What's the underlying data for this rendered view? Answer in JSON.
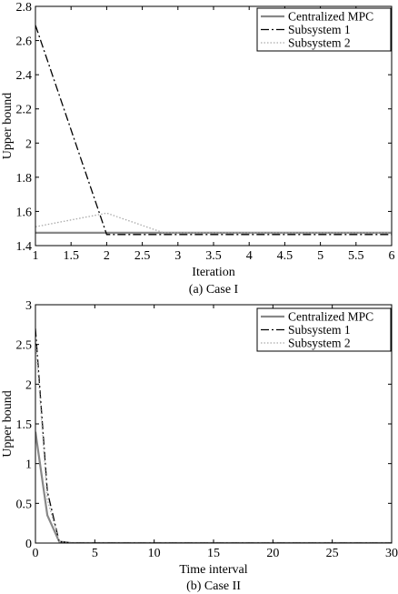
{
  "chart_data": [
    {
      "type": "line",
      "caption": "(a) Case I",
      "xlabel": "Iteration",
      "ylabel": "Upper bound",
      "xlim": [
        1,
        6
      ],
      "ylim": [
        1.4,
        2.8
      ],
      "xticks": [
        1,
        1.5,
        2,
        2.5,
        3,
        3.5,
        4,
        4.5,
        5,
        5.5,
        6
      ],
      "xtick_labels": [
        "1",
        "1.5",
        "2",
        "2.5",
        "3",
        "3.5",
        "4",
        "4.5",
        "5",
        "5.5",
        "6"
      ],
      "yticks": [
        1.4,
        1.6,
        1.8,
        2,
        2.2,
        2.4,
        2.6,
        2.8
      ],
      "ytick_labels": [
        "1.4",
        "1.6",
        "1.8",
        "2",
        "2.2",
        "2.4",
        "2.6",
        "2.8"
      ],
      "grid": false,
      "legend_position": "top-right",
      "series": [
        {
          "name": "Centralized MPC",
          "color": "#888888",
          "style": "solid",
          "x": [
            1,
            2,
            3,
            4,
            5,
            6
          ],
          "y": [
            1.475,
            1.475,
            1.475,
            1.475,
            1.475,
            1.475
          ]
        },
        {
          "name": "Subsystem 1",
          "color": "#000000",
          "style": "dashdot",
          "x": [
            1,
            2,
            3,
            4,
            5,
            6
          ],
          "y": [
            2.69,
            1.465,
            1.465,
            1.465,
            1.465,
            1.465
          ]
        },
        {
          "name": "Subsystem 2",
          "color": "#aaaaaa",
          "style": "dotted",
          "x": [
            1,
            2,
            2.8,
            3,
            4,
            5,
            6
          ],
          "y": [
            1.51,
            1.59,
            1.475,
            1.475,
            1.475,
            1.475,
            1.475
          ]
        }
      ]
    },
    {
      "type": "line",
      "caption": "(b) Case II",
      "xlabel": "Time interval",
      "ylabel": "Upper bound",
      "xlim": [
        0,
        30
      ],
      "ylim": [
        0,
        3
      ],
      "xticks": [
        0,
        5,
        10,
        15,
        20,
        25,
        30
      ],
      "xtick_labels": [
        "0",
        "5",
        "10",
        "15",
        "20",
        "25",
        "30"
      ],
      "yticks": [
        0,
        0.5,
        1,
        1.5,
        2,
        2.5,
        3
      ],
      "ytick_labels": [
        "0",
        "0.5",
        "1",
        "1.5",
        "2",
        "2.5",
        "3"
      ],
      "grid": false,
      "legend_position": "top-right",
      "series": [
        {
          "name": "Centralized MPC",
          "color": "#888888",
          "style": "solid",
          "x": [
            0,
            1,
            2,
            3,
            30
          ],
          "y": [
            1.4,
            0.35,
            0.02,
            0,
            0
          ]
        },
        {
          "name": "Subsystem 1",
          "color": "#000000",
          "style": "dashdot",
          "x": [
            0,
            1,
            2,
            3,
            30
          ],
          "y": [
            2.7,
            0.65,
            0.02,
            0,
            0
          ]
        },
        {
          "name": "Subsystem 2",
          "color": "#aaaaaa",
          "style": "dotted",
          "x": [
            0,
            1,
            2,
            3,
            30
          ],
          "y": [
            2.6,
            0.55,
            0.02,
            0,
            0
          ]
        }
      ]
    }
  ]
}
